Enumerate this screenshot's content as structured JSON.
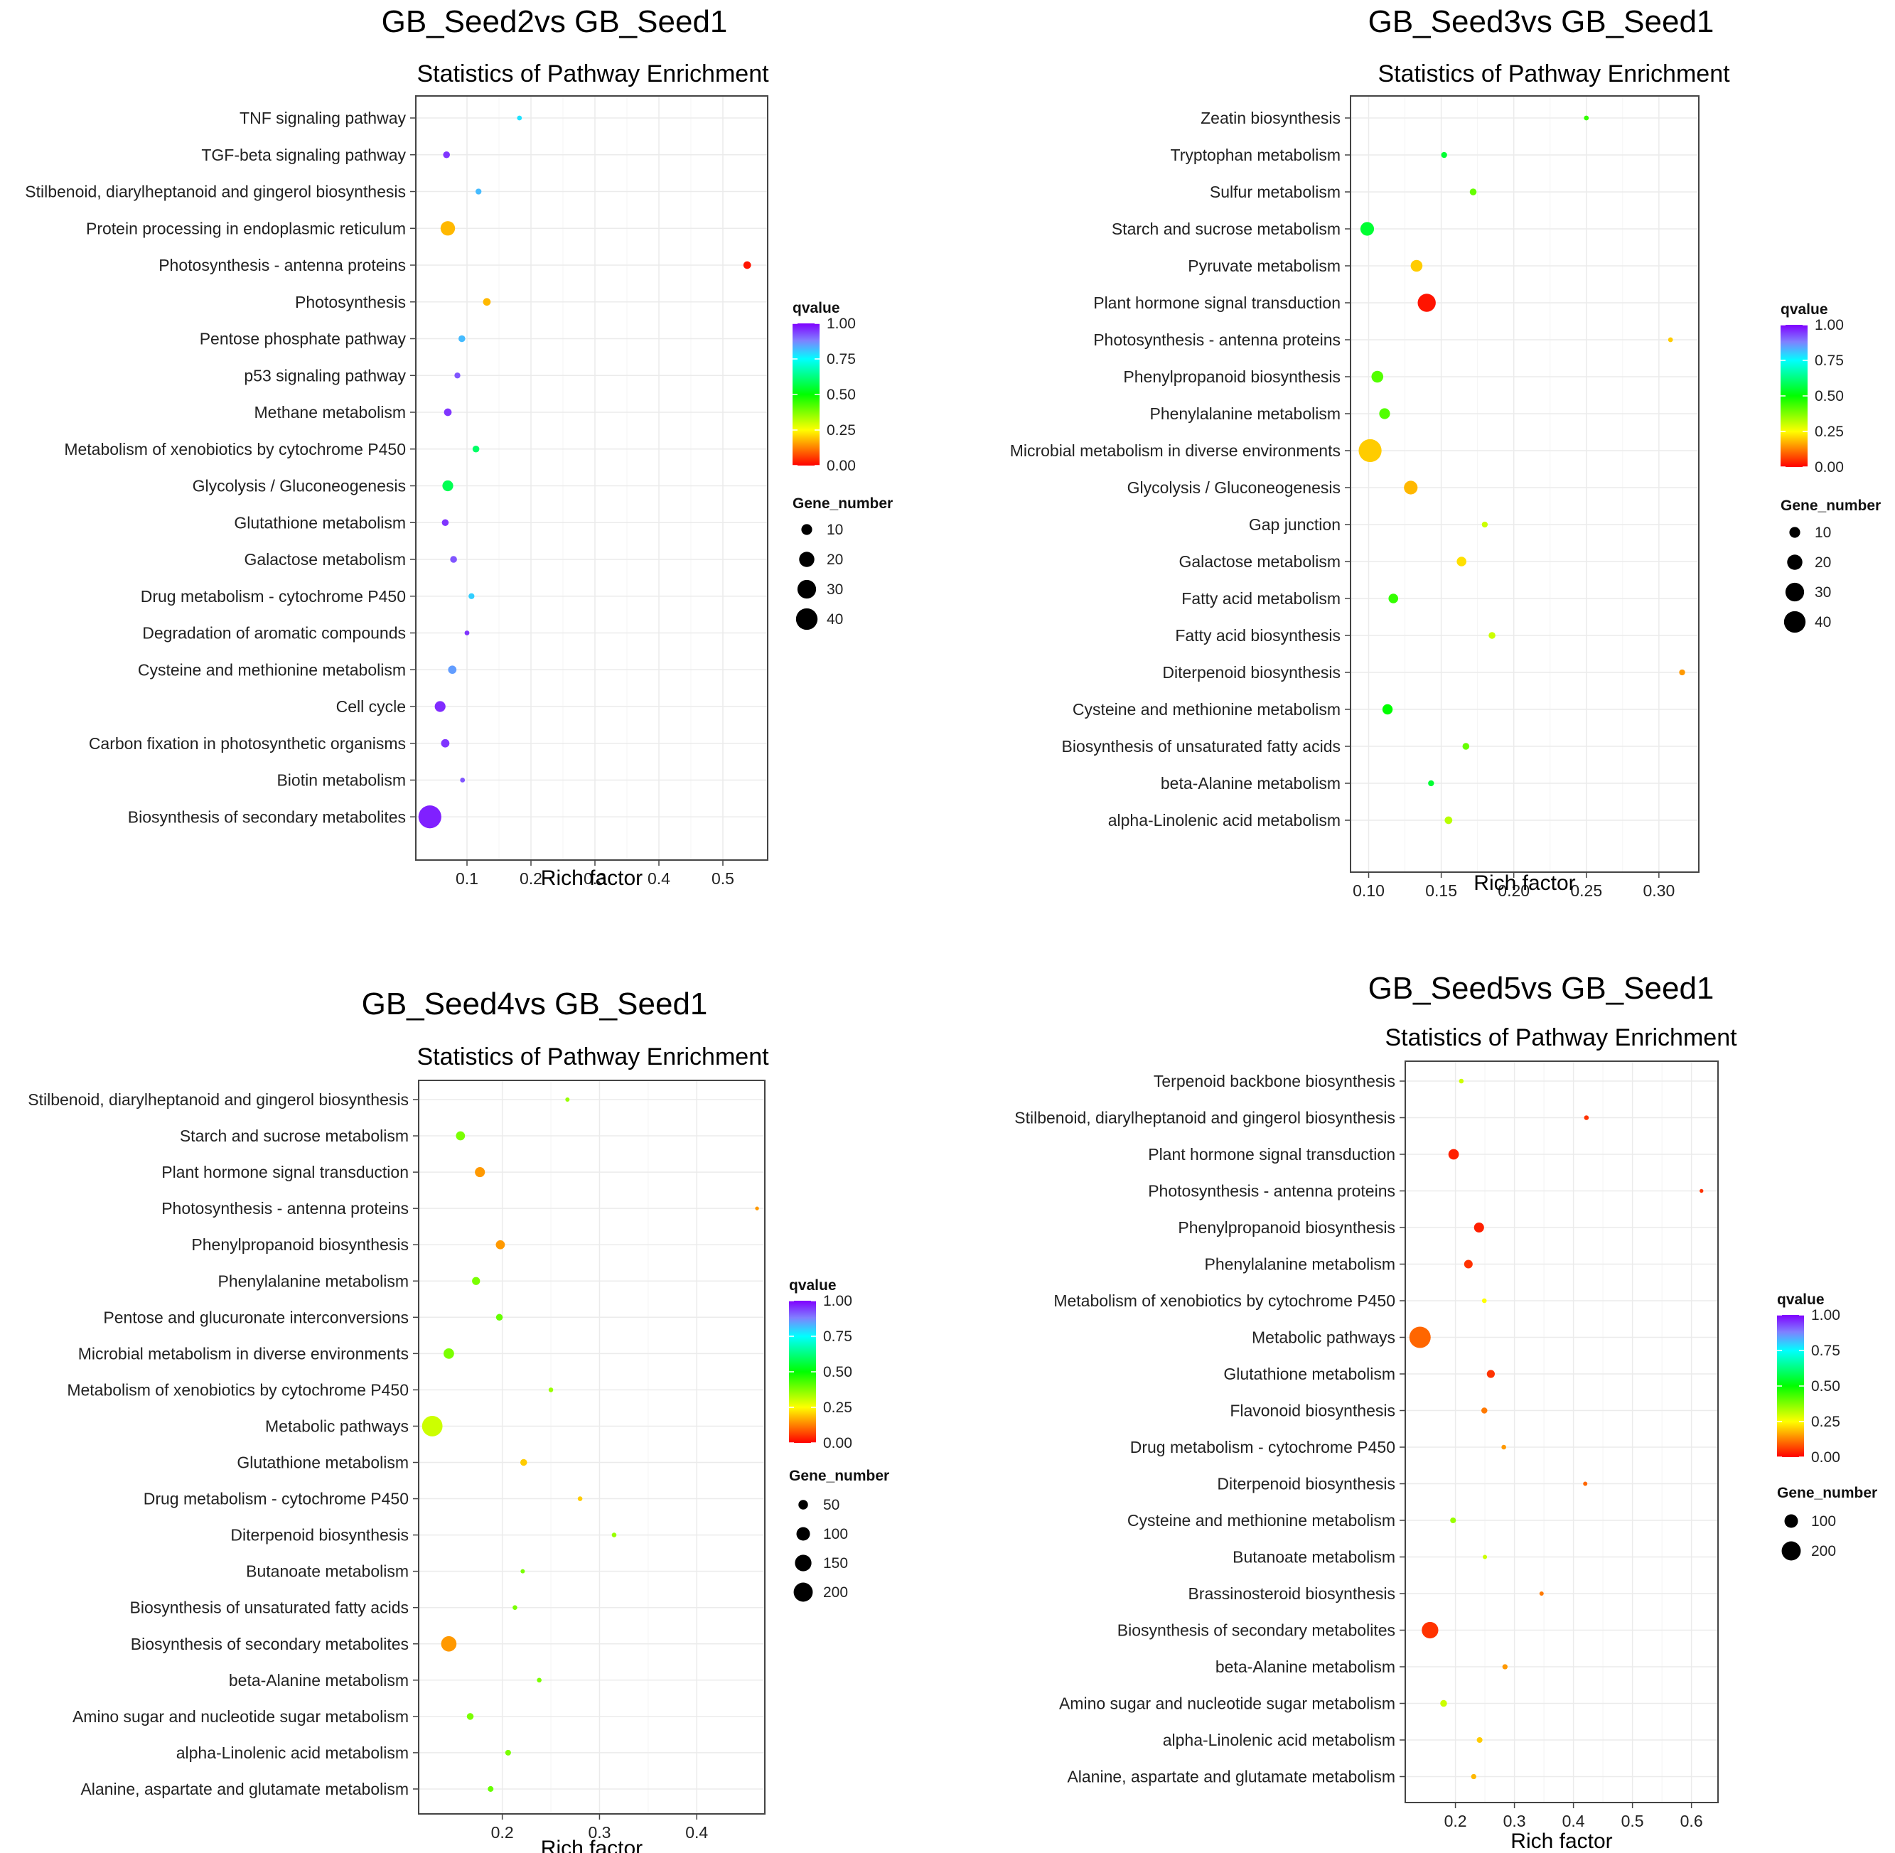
{
  "chart_data": [
    {
      "type": "scatter",
      "title": "GB_Seed2vs GB_Seed1",
      "subtitle": "Statistics of Pathway Enrichment",
      "xlabel": "Rich factor",
      "ylabel": "",
      "xlim": [
        0.02,
        0.57
      ],
      "xticks": [
        0.1,
        0.2,
        0.3,
        0.4,
        0.5
      ],
      "xtick_labels": [
        "0.1",
        "0.2",
        "0.3",
        "0.4",
        "0.5"
      ],
      "grid": true,
      "color_legend": {
        "title": "qvalue",
        "ticks": [
          "1.00",
          "0.75",
          "0.50",
          "0.25",
          "0.00"
        ]
      },
      "size_legend": {
        "title": "Gene_number",
        "values": [
          10,
          20,
          30,
          40
        ]
      },
      "points": [
        {
          "pathway": "TNF signaling pathway",
          "rich_factor": 0.182,
          "qvalue": 0.78,
          "gene_number": 2
        },
        {
          "pathway": "TGF-beta signaling pathway",
          "rich_factor": 0.068,
          "qvalue": 0.95,
          "gene_number": 4
        },
        {
          "pathway": "Stilbenoid, diarylheptanoid and gingerol biosynthesis",
          "rich_factor": 0.118,
          "qvalue": 0.82,
          "gene_number": 3
        },
        {
          "pathway": "Protein processing in endoplasmic reticulum",
          "rich_factor": 0.07,
          "qvalue": 0.18,
          "gene_number": 18
        },
        {
          "pathway": "Photosynthesis - antenna proteins",
          "rich_factor": 0.538,
          "qvalue": 0.02,
          "gene_number": 5
        },
        {
          "pathway": "Photosynthesis",
          "rich_factor": 0.131,
          "qvalue": 0.18,
          "gene_number": 5
        },
        {
          "pathway": "Pentose phosphate pathway",
          "rich_factor": 0.092,
          "qvalue": 0.82,
          "gene_number": 4
        },
        {
          "pathway": "p53 signaling pathway",
          "rich_factor": 0.085,
          "qvalue": 0.92,
          "gene_number": 3
        },
        {
          "pathway": "Methane metabolism",
          "rich_factor": 0.07,
          "qvalue": 0.95,
          "gene_number": 5
        },
        {
          "pathway": "Metabolism of xenobiotics by cytochrome P450",
          "rich_factor": 0.114,
          "qvalue": 0.6,
          "gene_number": 4
        },
        {
          "pathway": "Glycolysis / Gluconeogenesis",
          "rich_factor": 0.07,
          "qvalue": 0.58,
          "gene_number": 10
        },
        {
          "pathway": "Glutathione metabolism",
          "rich_factor": 0.066,
          "qvalue": 0.95,
          "gene_number": 4
        },
        {
          "pathway": "Galactose metabolism",
          "rich_factor": 0.079,
          "qvalue": 0.92,
          "gene_number": 4
        },
        {
          "pathway": "Drug metabolism - cytochrome P450",
          "rich_factor": 0.107,
          "qvalue": 0.8,
          "gene_number": 3
        },
        {
          "pathway": "Degradation of aromatic compounds",
          "rich_factor": 0.1,
          "qvalue": 0.95,
          "gene_number": 2
        },
        {
          "pathway": "Cysteine and methionine metabolism",
          "rich_factor": 0.077,
          "qvalue": 0.85,
          "gene_number": 6
        },
        {
          "pathway": "Cell cycle",
          "rich_factor": 0.058,
          "qvalue": 0.96,
          "gene_number": 10
        },
        {
          "pathway": "Carbon fixation in photosynthetic organisms",
          "rich_factor": 0.066,
          "qvalue": 0.95,
          "gene_number": 6
        },
        {
          "pathway": "Biotin metabolism",
          "rich_factor": 0.093,
          "qvalue": 0.92,
          "gene_number": 2
        },
        {
          "pathway": "Biosynthesis of secondary metabolites",
          "rich_factor": 0.042,
          "qvalue": 0.97,
          "gene_number": 45
        }
      ]
    },
    {
      "type": "scatter",
      "title": "GB_Seed3vs GB_Seed1",
      "subtitle": "Statistics of Pathway Enrichment",
      "xlabel": "Rich factor",
      "ylabel": "",
      "xlim": [
        0.0875,
        0.3275
      ],
      "xticks": [
        0.1,
        0.15,
        0.2,
        0.25,
        0.3
      ],
      "xtick_labels": [
        "0.10",
        "0.15",
        "0.20",
        "0.25",
        "0.30"
      ],
      "grid": true,
      "color_legend": {
        "title": "qvalue",
        "ticks": [
          "1.00",
          "0.75",
          "0.50",
          "0.25",
          "0.00"
        ]
      },
      "size_legend": {
        "title": "Gene_number",
        "values": [
          10,
          20,
          30,
          40
        ]
      },
      "points": [
        {
          "pathway": "Zeatin biosynthesis",
          "rich_factor": 0.25,
          "qvalue": 0.45,
          "gene_number": 2
        },
        {
          "pathway": "Tryptophan metabolism",
          "rich_factor": 0.152,
          "qvalue": 0.55,
          "gene_number": 3
        },
        {
          "pathway": "Sulfur metabolism",
          "rich_factor": 0.172,
          "qvalue": 0.4,
          "gene_number": 4
        },
        {
          "pathway": "Starch and sucrose metabolism",
          "rich_factor": 0.099,
          "qvalue": 0.55,
          "gene_number": 16
        },
        {
          "pathway": "Pyruvate metabolism",
          "rich_factor": 0.133,
          "qvalue": 0.2,
          "gene_number": 12
        },
        {
          "pathway": "Plant hormone signal transduction",
          "rich_factor": 0.14,
          "qvalue": 0.02,
          "gene_number": 28
        },
        {
          "pathway": "Photosynthesis - antenna proteins",
          "rich_factor": 0.308,
          "qvalue": 0.2,
          "gene_number": 2
        },
        {
          "pathway": "Phenylpropanoid biosynthesis",
          "rich_factor": 0.106,
          "qvalue": 0.42,
          "gene_number": 12
        },
        {
          "pathway": "Phenylalanine metabolism",
          "rich_factor": 0.111,
          "qvalue": 0.42,
          "gene_number": 10
        },
        {
          "pathway": "Microbial metabolism in diverse environments",
          "rich_factor": 0.101,
          "qvalue": 0.2,
          "gene_number": 45
        },
        {
          "pathway": "Glycolysis / Gluconeogenesis",
          "rich_factor": 0.129,
          "qvalue": 0.18,
          "gene_number": 16
        },
        {
          "pathway": "Gap junction",
          "rich_factor": 0.18,
          "qvalue": 0.3,
          "gene_number": 3
        },
        {
          "pathway": "Galactose metabolism",
          "rich_factor": 0.164,
          "qvalue": 0.22,
          "gene_number": 8
        },
        {
          "pathway": "Fatty acid metabolism",
          "rich_factor": 0.117,
          "qvalue": 0.45,
          "gene_number": 8
        },
        {
          "pathway": "Fatty acid biosynthesis",
          "rich_factor": 0.185,
          "qvalue": 0.3,
          "gene_number": 4
        },
        {
          "pathway": "Diterpenoid biosynthesis",
          "rich_factor": 0.316,
          "qvalue": 0.15,
          "gene_number": 3
        },
        {
          "pathway": "Cysteine and methionine metabolism",
          "rich_factor": 0.113,
          "qvalue": 0.5,
          "gene_number": 9
        },
        {
          "pathway": "Biosynthesis of unsaturated fatty acids",
          "rich_factor": 0.167,
          "qvalue": 0.4,
          "gene_number": 4
        },
        {
          "pathway": "beta-Alanine metabolism",
          "rich_factor": 0.143,
          "qvalue": 0.55,
          "gene_number": 3
        },
        {
          "pathway": "alpha-Linolenic acid metabolism",
          "rich_factor": 0.155,
          "qvalue": 0.32,
          "gene_number": 5
        }
      ]
    },
    {
      "type": "scatter",
      "title": "GB_Seed4vs GB_Seed1",
      "subtitle": "Statistics of Pathway Enrichment",
      "xlabel": "Rich factor",
      "ylabel": "",
      "xlim": [
        0.114,
        0.47
      ],
      "xticks": [
        0.2,
        0.3,
        0.4
      ],
      "xtick_labels": [
        "0.2",
        "0.3",
        "0.4"
      ],
      "grid": true,
      "color_legend": {
        "title": "qvalue",
        "ticks": [
          "1.00",
          "0.75",
          "0.50",
          "0.25",
          "0.00"
        ]
      },
      "size_legend": {
        "title": "Gene_number",
        "values": [
          50,
          100,
          150,
          200
        ]
      },
      "points": [
        {
          "pathway": "Stilbenoid, diarylheptanoid and gingerol biosynthesis",
          "rich_factor": 0.267,
          "qvalue": 0.35,
          "gene_number": 10
        },
        {
          "pathway": "Starch and sucrose metabolism",
          "rich_factor": 0.157,
          "qvalue": 0.38,
          "gene_number": 45
        },
        {
          "pathway": "Plant hormone signal transduction",
          "rich_factor": 0.177,
          "qvalue": 0.15,
          "gene_number": 55
        },
        {
          "pathway": "Photosynthesis - antenna proteins",
          "rich_factor": 0.462,
          "qvalue": 0.15,
          "gene_number": 8
        },
        {
          "pathway": "Phenylpropanoid biosynthesis",
          "rich_factor": 0.198,
          "qvalue": 0.15,
          "gene_number": 45
        },
        {
          "pathway": "Phenylalanine metabolism",
          "rich_factor": 0.173,
          "qvalue": 0.38,
          "gene_number": 35
        },
        {
          "pathway": "Pentose and glucuronate interconversions",
          "rich_factor": 0.197,
          "qvalue": 0.4,
          "gene_number": 25
        },
        {
          "pathway": "Microbial metabolism in diverse environments",
          "rich_factor": 0.145,
          "qvalue": 0.38,
          "gene_number": 60
        },
        {
          "pathway": "Metabolism of xenobiotics by cytochrome P450",
          "rich_factor": 0.25,
          "qvalue": 0.35,
          "gene_number": 12
        },
        {
          "pathway": "Metabolic pathways",
          "rich_factor": 0.128,
          "qvalue": 0.3,
          "gene_number": 230
        },
        {
          "pathway": "Glutathione metabolism",
          "rich_factor": 0.222,
          "qvalue": 0.2,
          "gene_number": 25
        },
        {
          "pathway": "Drug metabolism - cytochrome P450",
          "rich_factor": 0.28,
          "qvalue": 0.2,
          "gene_number": 12
        },
        {
          "pathway": "Diterpenoid biosynthesis",
          "rich_factor": 0.315,
          "qvalue": 0.35,
          "gene_number": 12
        },
        {
          "pathway": "Butanoate metabolism",
          "rich_factor": 0.221,
          "qvalue": 0.38,
          "gene_number": 10
        },
        {
          "pathway": "Biosynthesis of unsaturated fatty acids",
          "rich_factor": 0.213,
          "qvalue": 0.38,
          "gene_number": 12
        },
        {
          "pathway": "Biosynthesis of secondary metabolites",
          "rich_factor": 0.145,
          "qvalue": 0.15,
          "gene_number": 130
        },
        {
          "pathway": "beta-Alanine metabolism",
          "rich_factor": 0.238,
          "qvalue": 0.38,
          "gene_number": 12
        },
        {
          "pathway": "Amino sugar and nucleotide sugar metabolism",
          "rich_factor": 0.167,
          "qvalue": 0.38,
          "gene_number": 25
        },
        {
          "pathway": "alpha-Linolenic acid metabolism",
          "rich_factor": 0.206,
          "qvalue": 0.38,
          "gene_number": 18
        },
        {
          "pathway": "Alanine, aspartate and glutamate metabolism",
          "rich_factor": 0.188,
          "qvalue": 0.4,
          "gene_number": 18
        }
      ]
    },
    {
      "type": "scatter",
      "title": "GB_Seed5vs GB_Seed1",
      "subtitle": "Statistics of Pathway Enrichment",
      "xlabel": "Rich factor",
      "ylabel": "",
      "xlim": [
        0.115,
        0.645
      ],
      "xticks": [
        0.2,
        0.3,
        0.4,
        0.5,
        0.6
      ],
      "xtick_labels": [
        "0.2",
        "0.3",
        "0.4",
        "0.5",
        "0.6"
      ],
      "grid": true,
      "color_legend": {
        "title": "qvalue",
        "ticks": [
          "1.00",
          "0.75",
          "0.50",
          "0.25",
          "0.00"
        ]
      },
      "size_legend": {
        "title": "Gene_number",
        "values": [
          100,
          200
        ]
      },
      "points": [
        {
          "pathway": "Terpenoid backbone biosynthesis",
          "rich_factor": 0.21,
          "qvalue": 0.3,
          "gene_number": 12
        },
        {
          "pathway": "Stilbenoid, diarylheptanoid and gingerol biosynthesis",
          "rich_factor": 0.422,
          "qvalue": 0.05,
          "gene_number": 12
        },
        {
          "pathway": "Plant hormone signal transduction",
          "rich_factor": 0.197,
          "qvalue": 0.03,
          "gene_number": 60
        },
        {
          "pathway": "Photosynthesis - antenna proteins",
          "rich_factor": 0.617,
          "qvalue": 0.05,
          "gene_number": 8
        },
        {
          "pathway": "Phenylpropanoid biosynthesis",
          "rich_factor": 0.24,
          "qvalue": 0.03,
          "gene_number": 55
        },
        {
          "pathway": "Phenylalanine metabolism",
          "rich_factor": 0.222,
          "qvalue": 0.05,
          "gene_number": 40
        },
        {
          "pathway": "Metabolism of xenobiotics by cytochrome P450",
          "rich_factor": 0.249,
          "qvalue": 0.25,
          "gene_number": 12
        },
        {
          "pathway": "Metabolic pathways",
          "rich_factor": 0.14,
          "qvalue": 0.1,
          "gene_number": 250
        },
        {
          "pathway": "Glutathione metabolism",
          "rich_factor": 0.26,
          "qvalue": 0.05,
          "gene_number": 35
        },
        {
          "pathway": "Flavonoid biosynthesis",
          "rich_factor": 0.249,
          "qvalue": 0.12,
          "gene_number": 20
        },
        {
          "pathway": "Drug metabolism - cytochrome P450",
          "rich_factor": 0.282,
          "qvalue": 0.15,
          "gene_number": 12
        },
        {
          "pathway": "Diterpenoid biosynthesis",
          "rich_factor": 0.42,
          "qvalue": 0.1,
          "gene_number": 10
        },
        {
          "pathway": "Cysteine and methionine metabolism",
          "rich_factor": 0.196,
          "qvalue": 0.35,
          "gene_number": 18
        },
        {
          "pathway": "Butanoate metabolism",
          "rich_factor": 0.25,
          "qvalue": 0.3,
          "gene_number": 10
        },
        {
          "pathway": "Brassinosteroid biosynthesis",
          "rich_factor": 0.346,
          "qvalue": 0.12,
          "gene_number": 10
        },
        {
          "pathway": "Biosynthesis of secondary metabolites",
          "rich_factor": 0.157,
          "qvalue": 0.05,
          "gene_number": 150
        },
        {
          "pathway": "beta-Alanine metabolism",
          "rich_factor": 0.284,
          "qvalue": 0.15,
          "gene_number": 15
        },
        {
          "pathway": "Amino sugar and nucleotide sugar metabolism",
          "rich_factor": 0.18,
          "qvalue": 0.3,
          "gene_number": 25
        },
        {
          "pathway": "alpha-Linolenic acid metabolism",
          "rich_factor": 0.241,
          "qvalue": 0.2,
          "gene_number": 18
        },
        {
          "pathway": "Alanine, aspartate and glutamate metabolism",
          "rich_factor": 0.231,
          "qvalue": 0.18,
          "gene_number": 15
        }
      ]
    }
  ]
}
